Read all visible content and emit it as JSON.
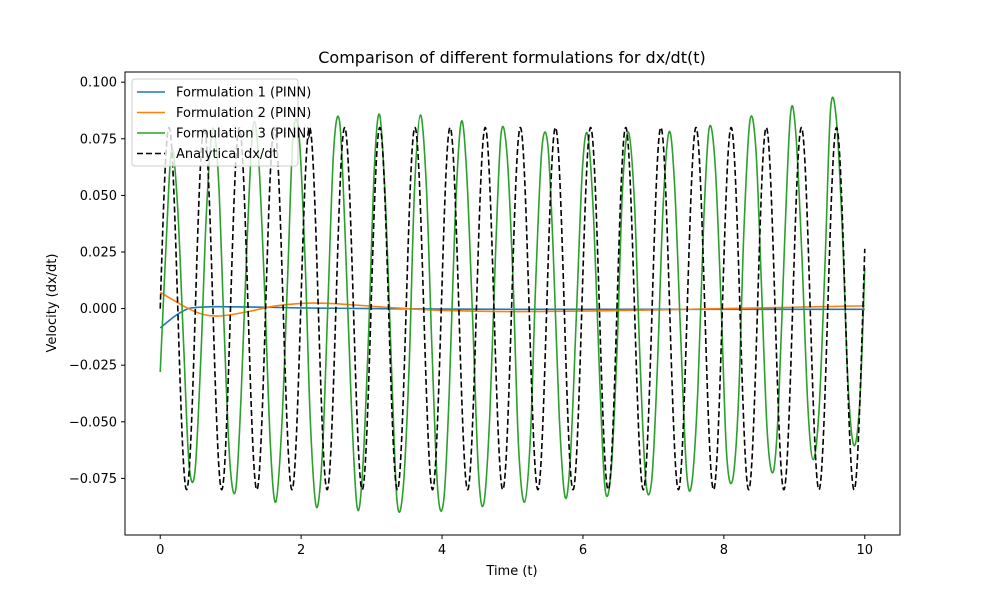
{
  "chart_data": {
    "type": "line",
    "title": "Comparison of different formulations for dx/dt(t)",
    "xlabel": "Time (t)",
    "ylabel": "Velocity (dx/dt)",
    "xlim": [
      -0.5,
      10.5
    ],
    "ylim": [
      -0.1,
      0.1045
    ],
    "xticks": [
      0,
      2,
      4,
      6,
      8,
      10
    ],
    "xtick_labels": [
      "0",
      "2",
      "4",
      "6",
      "8",
      "10"
    ],
    "yticks": [
      -0.075,
      -0.05,
      -0.025,
      0.0,
      0.025,
      0.05,
      0.075,
      0.1
    ],
    "ytick_labels": [
      "−0.075",
      "−0.050",
      "−0.025",
      "0.000",
      "0.025",
      "0.050",
      "0.075",
      "0.100"
    ],
    "grid": false,
    "legend_position": "top-left",
    "series": [
      {
        "name": "Formulation 1 (PINN)",
        "color": "#1f77b4",
        "style": "solid",
        "x": [
          0,
          0.1,
          0.2,
          0.3,
          0.4,
          0.5,
          0.7,
          1.0,
          1.5,
          2.0,
          3.0,
          4.0,
          5.0,
          6.0,
          7.0,
          8.0,
          9.0,
          10.0
        ],
        "y": [
          -0.0085,
          -0.006,
          -0.0035,
          -0.0015,
          0.0,
          0.0005,
          0.0008,
          0.0008,
          0.0006,
          0.0003,
          0.0,
          -0.0002,
          -0.0003,
          -0.0003,
          -0.0003,
          -0.0003,
          -0.0003,
          -0.0003
        ]
      },
      {
        "name": "Formulation 2 (PINN)",
        "color": "#ff7f0e",
        "style": "solid",
        "x": [
          0,
          0.2,
          0.4,
          0.6,
          0.8,
          1.0,
          1.3,
          1.6,
          2.0,
          2.4,
          2.8,
          3.2,
          3.6,
          4.0,
          5.0,
          6.0,
          7.0,
          8.0,
          9.0,
          10.0
        ],
        "y": [
          0.0072,
          0.0035,
          0.0,
          -0.0025,
          -0.0033,
          -0.0027,
          -0.001,
          0.001,
          0.0023,
          0.0023,
          0.0015,
          0.0006,
          -0.0002,
          -0.0008,
          -0.0013,
          -0.0011,
          -0.0006,
          0.0,
          0.0006,
          0.0012
        ]
      },
      {
        "name": "Formulation 3 (PINN)",
        "color": "#2ca02c",
        "style": "solid",
        "x": [
          0.0,
          0.085,
          0.161,
          0.246,
          0.331,
          0.408,
          0.493,
          0.578,
          0.654,
          0.739,
          0.824,
          0.9,
          0.985,
          1.07,
          1.147,
          1.231,
          1.316,
          1.393,
          1.477,
          1.562,
          1.639,
          1.724,
          1.808,
          1.885,
          1.97,
          2.055,
          2.131,
          2.216,
          2.301,
          2.378,
          2.462,
          2.547,
          2.624,
          2.709,
          2.793,
          2.87,
          2.955,
          3.039,
          3.116,
          3.201,
          3.285,
          3.362,
          3.447,
          3.532,
          3.608,
          3.693,
          3.778,
          3.854,
          3.939,
          4.024,
          4.101,
          4.185,
          4.27,
          4.347,
          4.431,
          4.516,
          4.593,
          4.677,
          4.762,
          4.839,
          4.924,
          5.008,
          5.085,
          5.17,
          5.254,
          5.331,
          5.416,
          5.5,
          5.577,
          5.662,
          5.746,
          5.823,
          5.908,
          5.993,
          6.069,
          6.154,
          6.239,
          6.315,
          6.4,
          6.485,
          6.562,
          6.646,
          6.731,
          6.808,
          6.892,
          6.977,
          7.054,
          7.138,
          7.223,
          7.3,
          7.385,
          7.469,
          7.546,
          7.631,
          7.715,
          7.792,
          7.877,
          7.961,
          8.038,
          8.123,
          8.207,
          8.284,
          8.369,
          8.454,
          8.53,
          8.615,
          8.7,
          8.776,
          8.861,
          8.946,
          9.022,
          9.107,
          9.192,
          9.268,
          9.353,
          9.438,
          9.515,
          9.599,
          9.684,
          9.761,
          9.845,
          9.93,
          10.0
        ],
        "y": [
          -0.028,
          0.0294,
          0.0703,
          0.0454,
          -0.0151,
          -0.0682,
          -0.0719,
          -0.0205,
          0.0414,
          0.0792,
          0.0589,
          -0.0033,
          -0.0663,
          -0.0802,
          -0.0393,
          0.0282,
          0.0801,
          0.0679,
          0.0114,
          -0.0593,
          -0.0855,
          -0.0527,
          0.0136,
          0.0762,
          0.0767,
          0.0223,
          -0.0501,
          -0.0876,
          -0.0639,
          0.0002,
          0.0701,
          0.0823,
          0.0331,
          -0.0398,
          -0.0874,
          -0.0729,
          -0.0133,
          0.0619,
          0.0854,
          0.044,
          -0.0282,
          -0.0853,
          -0.0799,
          -0.0263,
          0.0517,
          0.0855,
          0.0537,
          -0.0153,
          -0.0802,
          -0.0846,
          -0.038,
          0.0397,
          0.0822,
          0.0614,
          -0.0017,
          -0.0717,
          -0.086,
          -0.0476,
          0.0267,
          0.0776,
          0.0674,
          0.012,
          -0.0603,
          -0.0855,
          -0.0568,
          0.0128,
          0.0702,
          0.0727,
          0.0259,
          -0.0465,
          -0.0832,
          -0.0648,
          -0.0019,
          0.0619,
          0.0765,
          0.0382,
          -0.0324,
          -0.0799,
          -0.0715,
          -0.017,
          0.0531,
          0.0779,
          0.0468,
          -0.0212,
          -0.0762,
          -0.0754,
          -0.0278,
          0.0453,
          0.0781,
          0.055,
          -0.0103,
          -0.0712,
          -0.0769,
          -0.0357,
          0.0394,
          0.0798,
          0.0632,
          0.0016,
          -0.0636,
          -0.0758,
          -0.0411,
          0.0341,
          0.0828,
          0.0707,
          0.0132,
          -0.0541,
          -0.0722,
          -0.0432,
          0.0284,
          0.0859,
          0.0771,
          0.0237,
          -0.0431,
          -0.0667,
          -0.0436,
          0.0218,
          0.0882,
          0.0827,
          0.0327,
          -0.0323,
          -0.0604,
          -0.0409,
          0.0181
        ]
      },
      {
        "name": "Analytical dx/dt",
        "color": "#000000",
        "style": "dashed",
        "amplitude": 0.08,
        "angular_frequency": 12.6,
        "x_start": 0,
        "x_end": 10
      }
    ]
  }
}
